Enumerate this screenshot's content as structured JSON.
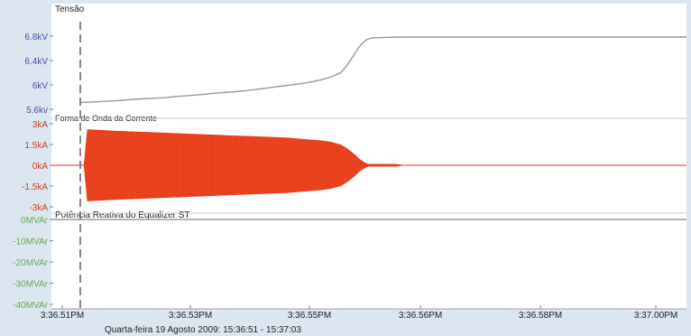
{
  "colors": {
    "background": "#dbe6f1",
    "plot_background": "#ffffff",
    "voltage_axis": "#4a4f9e",
    "current_axis": "#d63a1f",
    "current_fill": "#e8401c",
    "reactive_axis": "#6aa84f",
    "line_gray": "#9a9a9a",
    "grid": "#b4bcc6",
    "text": "#222222"
  },
  "x_axis": {
    "ticks": [
      "3:36.51PM",
      "3:36.53PM",
      "3:36.55PM",
      "3:36.56PM",
      "3:36.58PM",
      "3:37.00PM"
    ]
  },
  "footer": {
    "date_range": "Quarta-feira 19  Agosto 2009: 15:36:51 - 15:37:03"
  },
  "chart_data": [
    {
      "type": "line",
      "title": "Tensão",
      "ytick_labels": [
        "6.8kV",
        "6.4kV",
        "6kV",
        "5.6kv"
      ],
      "ytick_values": [
        6.8,
        6.4,
        6.0,
        5.6
      ],
      "ylim": [
        5.6,
        6.8
      ],
      "unit": "kV",
      "series": [
        {
          "x": [
            0.0,
            0.35,
            0.7,
            1.05,
            1.4,
            1.75,
            2.1,
            2.45,
            2.8,
            3.15,
            3.5,
            3.85,
            4.2,
            4.55,
            4.9,
            5.25,
            5.6,
            5.95,
            6.3,
            6.65,
            7.0,
            7.2,
            7.4,
            7.6,
            7.75,
            7.9,
            8.05,
            8.2,
            8.35,
            8.5,
            8.7,
            9.0,
            9.5,
            10.0,
            10.5,
            11.0,
            11.5,
            12.0
          ],
          "values": [
            5.71,
            5.72,
            5.73,
            5.74,
            5.755,
            5.77,
            5.78,
            5.79,
            5.81,
            5.825,
            5.84,
            5.86,
            5.875,
            5.89,
            5.91,
            5.935,
            5.96,
            5.985,
            6.01,
            6.04,
            6.08,
            6.11,
            6.15,
            6.2,
            6.3,
            6.42,
            6.55,
            6.67,
            6.74,
            6.77,
            6.775,
            6.78,
            6.785,
            6.785,
            6.785,
            6.785,
            6.785,
            6.785
          ]
        }
      ]
    },
    {
      "type": "area",
      "title": "Forma de Onda da Corrente",
      "ytick_labels": [
        "3kA",
        "1.5kA",
        "0kA",
        "-1.5kA",
        "-3kA"
      ],
      "ytick_values": [
        3,
        1.5,
        0,
        -1.5,
        -3
      ],
      "ylim": [
        -3,
        3
      ],
      "unit": "kA",
      "series": [
        {
          "x": [
            0.1,
            0.2,
            1.0,
            2.0,
            3.0,
            4.0,
            5.0,
            6.0,
            6.5,
            7.0,
            7.3,
            7.6,
            7.8,
            8.0,
            8.15,
            8.3,
            8.4,
            8.5,
            8.6,
            8.8,
            9.2,
            9.5,
            10.0,
            11.0,
            12.0
          ],
          "values": [
            0,
            2.6,
            2.5,
            2.4,
            2.3,
            2.2,
            2.1,
            2.0,
            1.9,
            1.8,
            1.7,
            1.5,
            1.2,
            0.8,
            0.45,
            0.2,
            0.1,
            0.1,
            0.1,
            0.1,
            0.1,
            0,
            0,
            0,
            0
          ]
        }
      ]
    },
    {
      "type": "line",
      "title": "Potência Reativa do Equalizer ST",
      "ytick_labels": [
        "0MVAr",
        "-10MVAr",
        "-20MVAr",
        "-30MVAr",
        "-40MVAr"
      ],
      "ytick_values": [
        0,
        -10,
        -20,
        -30,
        -40
      ],
      "ylim": [
        -40,
        0
      ],
      "unit": "MVAr",
      "series": [
        {
          "x": [
            0,
            12
          ],
          "values": [
            0,
            0
          ]
        }
      ]
    }
  ]
}
